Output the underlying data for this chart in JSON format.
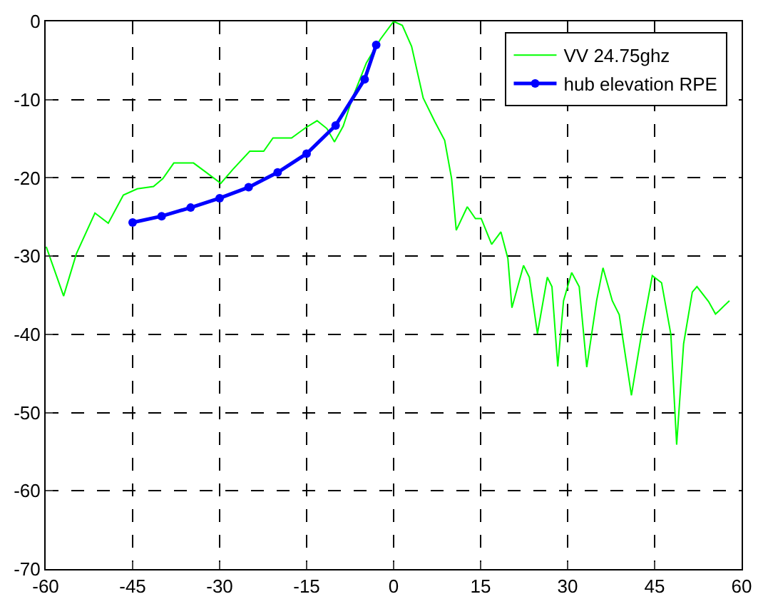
{
  "chart_data": {
    "type": "line",
    "xlim": [
      -60,
      60
    ],
    "xticks": [
      -60,
      -45,
      -30,
      -15,
      0,
      15,
      30,
      45,
      60
    ],
    "ylim": [
      -70,
      0
    ],
    "yticks": [
      -70,
      -60,
      -50,
      -40,
      -30,
      -20,
      -10,
      0
    ],
    "grid": true,
    "legend": "top right",
    "series": [
      {
        "name": "VV 24.75ghz",
        "color": "#00ff00",
        "marker": "none",
        "x": [
          -59.9,
          -56.9,
          -54.7,
          -51.5,
          -49.2,
          -46.6,
          -44.2,
          -41.4,
          -39.8,
          -37.9,
          -34.5,
          -32.5,
          -29.8,
          -27.7,
          -24.8,
          -22.4,
          -20.8,
          -17.6,
          -15.2,
          -13.2,
          -11.5,
          -10.2,
          -8.7,
          -7.1,
          -4.7,
          -2.3,
          0,
          1.5,
          3.1,
          5.1,
          7.1,
          8.8,
          10,
          10.8,
          12.7,
          14.1,
          15.1,
          16.9,
          18.5,
          19.7,
          20.4,
          22.4,
          23.4,
          24.8,
          26.5,
          27.3,
          28.3,
          29.3,
          30.7,
          32,
          33.3,
          35,
          36.1,
          37.7,
          38.9,
          41,
          42.6,
          44.6,
          46.2,
          47.8,
          48.8,
          50,
          51.5,
          52.3,
          54.3,
          55.5,
          56.1,
          57.9
        ],
        "values": [
          -28.8,
          -35.1,
          -29.7,
          -24.5,
          -25.8,
          -22.2,
          -21.4,
          -21.1,
          -20.1,
          -18.1,
          -18.1,
          -19.2,
          -20.7,
          -18.9,
          -16.6,
          -16.6,
          -14.9,
          -14.9,
          -13.6,
          -12.7,
          -13.7,
          -15.4,
          -13.4,
          -9.8,
          -5.3,
          -2.3,
          0,
          -0.5,
          -3.2,
          -9.8,
          -12.8,
          -15.2,
          -20.1,
          -26.7,
          -23.7,
          -25.2,
          -25.2,
          -28.5,
          -26.9,
          -30.3,
          -36.6,
          -31.2,
          -32.7,
          -39.9,
          -32.7,
          -33.9,
          -44.1,
          -35.7,
          -32.1,
          -33.9,
          -44.2,
          -35.7,
          -31.5,
          -35.7,
          -37.5,
          -47.8,
          -40.6,
          -32.5,
          -33.4,
          -40,
          -54.1,
          -41.2,
          -34.6,
          -33.9,
          -35.8,
          -37.4,
          -37,
          -35.7
        ]
      },
      {
        "name": "hub elevation RPE",
        "color": "#0000ff",
        "marker": "circle",
        "x": [
          -45,
          -40,
          -35,
          -30,
          -25,
          -20,
          -15,
          -10,
          -5,
          -3
        ],
        "values": [
          -25.7,
          -24.9,
          -23.8,
          -22.6,
          -21.2,
          -19.3,
          -16.9,
          -13.3,
          -7.4,
          -3.0
        ]
      }
    ]
  }
}
